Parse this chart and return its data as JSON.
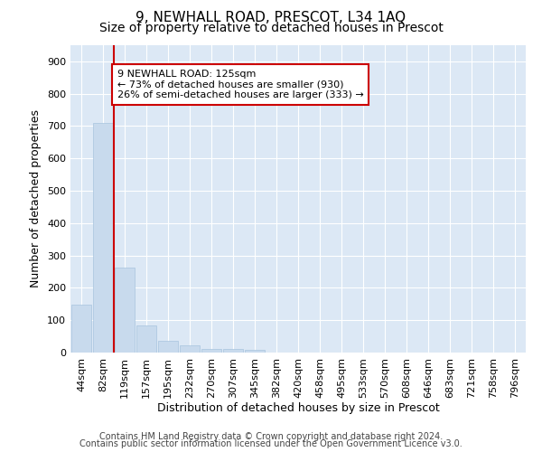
{
  "title": "9, NEWHALL ROAD, PRESCOT, L34 1AQ",
  "subtitle": "Size of property relative to detached houses in Prescot",
  "xlabel": "Distribution of detached houses by size in Prescot",
  "ylabel": "Number of detached properties",
  "categories": [
    "44sqm",
    "82sqm",
    "119sqm",
    "157sqm",
    "195sqm",
    "232sqm",
    "270sqm",
    "307sqm",
    "345sqm",
    "382sqm",
    "420sqm",
    "458sqm",
    "495sqm",
    "533sqm",
    "570sqm",
    "608sqm",
    "646sqm",
    "683sqm",
    "721sqm",
    "758sqm",
    "796sqm"
  ],
  "values": [
    148,
    710,
    262,
    85,
    37,
    22,
    12,
    10,
    7,
    0,
    0,
    0,
    0,
    0,
    0,
    0,
    0,
    0,
    0,
    0,
    0
  ],
  "bar_color": "#c8daed",
  "bar_edge_color": "#a8c4de",
  "vline_color": "#cc0000",
  "vline_index": 1.5,
  "annotation_line1": "9 NEWHALL ROAD: 125sqm",
  "annotation_line2": "← 73% of detached houses are smaller (930)",
  "annotation_line3": "26% of semi-detached houses are larger (333) →",
  "annotation_box_facecolor": "#ffffff",
  "annotation_box_edgecolor": "#cc0000",
  "ylim": [
    0,
    950
  ],
  "yticks": [
    0,
    100,
    200,
    300,
    400,
    500,
    600,
    700,
    800,
    900
  ],
  "fig_facecolor": "#ffffff",
  "axes_facecolor": "#dce8f5",
  "grid_color": "#ffffff",
  "footer_line1": "Contains HM Land Registry data © Crown copyright and database right 2024.",
  "footer_line2": "Contains public sector information licensed under the Open Government Licence v3.0.",
  "title_fontsize": 11,
  "subtitle_fontsize": 10,
  "axis_label_fontsize": 9,
  "tick_fontsize": 8,
  "annotation_fontsize": 8,
  "footer_fontsize": 7
}
